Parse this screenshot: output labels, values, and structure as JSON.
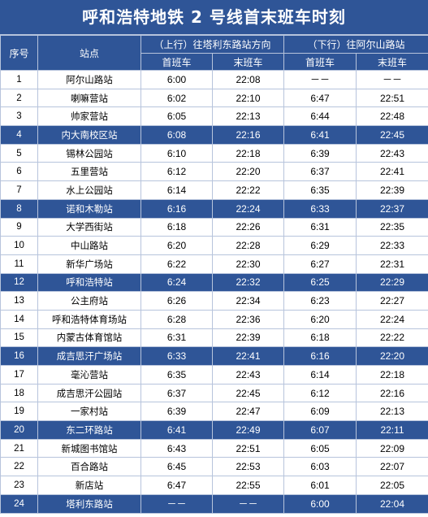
{
  "title": "呼和浩特地铁 2 号线首末班车时刻",
  "headers": {
    "index": "序号",
    "station": "站点",
    "up_direction": "（上行）往塔利东路站方向",
    "down_direction": "（下行）往阿尔山路站",
    "up_first": "首班车",
    "up_last": "末班车",
    "down_first": "首班车",
    "down_last": "末班车"
  },
  "colors": {
    "header_bg": "#2f5597",
    "highlight_row_bg": "#2f5597",
    "border": "#b7c4dc"
  },
  "rows": [
    {
      "index": "1",
      "station": "阿尔山路站",
      "up_first": "6:00",
      "up_last": "22:08",
      "down_first": "－－",
      "down_last": "－－",
      "highlight": false
    },
    {
      "index": "2",
      "station": "喇嘛营站",
      "up_first": "6:02",
      "up_last": "22:10",
      "down_first": "6:47",
      "down_last": "22:51",
      "highlight": false
    },
    {
      "index": "3",
      "station": "帅家营站",
      "up_first": "6:05",
      "up_last": "22:13",
      "down_first": "6:44",
      "down_last": "22:48",
      "highlight": false
    },
    {
      "index": "4",
      "station": "内大南校区站",
      "up_first": "6:08",
      "up_last": "22:16",
      "down_first": "6:41",
      "down_last": "22:45",
      "highlight": true
    },
    {
      "index": "5",
      "station": "锡林公园站",
      "up_first": "6:10",
      "up_last": "22:18",
      "down_first": "6:39",
      "down_last": "22:43",
      "highlight": false
    },
    {
      "index": "6",
      "station": "五里营站",
      "up_first": "6:12",
      "up_last": "22:20",
      "down_first": "6:37",
      "down_last": "22:41",
      "highlight": false
    },
    {
      "index": "7",
      "station": "水上公园站",
      "up_first": "6:14",
      "up_last": "22:22",
      "down_first": "6:35",
      "down_last": "22:39",
      "highlight": false
    },
    {
      "index": "8",
      "station": "诺和木勒站",
      "up_first": "6:16",
      "up_last": "22:24",
      "down_first": "6:33",
      "down_last": "22:37",
      "highlight": true
    },
    {
      "index": "9",
      "station": "大学西街站",
      "up_first": "6:18",
      "up_last": "22:26",
      "down_first": "6:31",
      "down_last": "22:35",
      "highlight": false
    },
    {
      "index": "10",
      "station": "中山路站",
      "up_first": "6:20",
      "up_last": "22:28",
      "down_first": "6:29",
      "down_last": "22:33",
      "highlight": false
    },
    {
      "index": "11",
      "station": "新华广场站",
      "up_first": "6:22",
      "up_last": "22:30",
      "down_first": "6:27",
      "down_last": "22:31",
      "highlight": false
    },
    {
      "index": "12",
      "station": "呼和浩特站",
      "up_first": "6:24",
      "up_last": "22:32",
      "down_first": "6:25",
      "down_last": "22:29",
      "highlight": true
    },
    {
      "index": "13",
      "station": "公主府站",
      "up_first": "6:26",
      "up_last": "22:34",
      "down_first": "6:23",
      "down_last": "22:27",
      "highlight": false
    },
    {
      "index": "14",
      "station": "呼和浩特体育场站",
      "up_first": "6:28",
      "up_last": "22:36",
      "down_first": "6:20",
      "down_last": "22:24",
      "highlight": false
    },
    {
      "index": "15",
      "station": "内蒙古体育馆站",
      "up_first": "6:31",
      "up_last": "22:39",
      "down_first": "6:18",
      "down_last": "22:22",
      "highlight": false
    },
    {
      "index": "16",
      "station": "成吉思汗广场站",
      "up_first": "6:33",
      "up_last": "22:41",
      "down_first": "6:16",
      "down_last": "22:20",
      "highlight": true
    },
    {
      "index": "17",
      "station": "毫沁营站",
      "up_first": "6:35",
      "up_last": "22:43",
      "down_first": "6:14",
      "down_last": "22:18",
      "highlight": false
    },
    {
      "index": "18",
      "station": "成吉思汗公园站",
      "up_first": "6:37",
      "up_last": "22:45",
      "down_first": "6:12",
      "down_last": "22:16",
      "highlight": false
    },
    {
      "index": "19",
      "station": "一家村站",
      "up_first": "6:39",
      "up_last": "22:47",
      "down_first": "6:09",
      "down_last": "22:13",
      "highlight": false
    },
    {
      "index": "20",
      "station": "东二环路站",
      "up_first": "6:41",
      "up_last": "22:49",
      "down_first": "6:07",
      "down_last": "22:11",
      "highlight": true
    },
    {
      "index": "21",
      "station": "新城图书馆站",
      "up_first": "6:43",
      "up_last": "22:51",
      "down_first": "6:05",
      "down_last": "22:09",
      "highlight": false
    },
    {
      "index": "22",
      "station": "百合路站",
      "up_first": "6:45",
      "up_last": "22:53",
      "down_first": "6:03",
      "down_last": "22:07",
      "highlight": false
    },
    {
      "index": "23",
      "station": "新店站",
      "up_first": "6:47",
      "up_last": "22:55",
      "down_first": "6:01",
      "down_last": "22:05",
      "highlight": false
    },
    {
      "index": "24",
      "station": "塔利东路站",
      "up_first": "－－",
      "up_last": "－－",
      "down_first": "6:00",
      "down_last": "22:04",
      "highlight": true
    }
  ]
}
